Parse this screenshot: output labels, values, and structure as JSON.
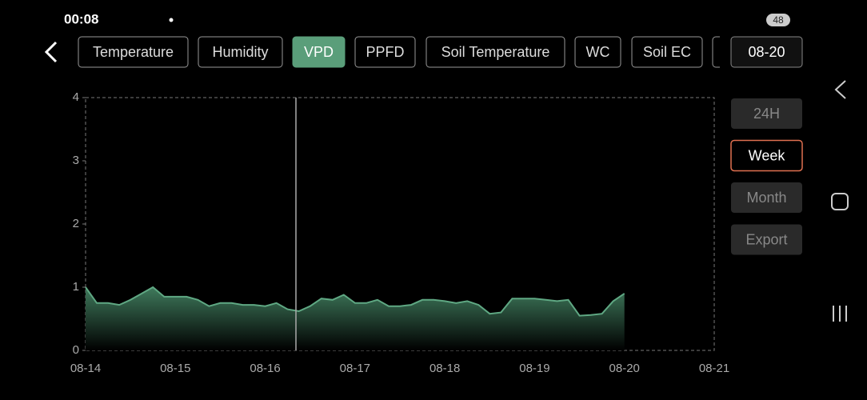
{
  "status_bar": {
    "time": "00:08",
    "battery": "48"
  },
  "tabs": [
    "Temperature",
    "Humidity",
    "VPD",
    "PPFD",
    "Soil Temperature",
    "WC",
    "Soil EC"
  ],
  "active_tab": 2,
  "date": "08-20",
  "range_buttons": [
    "24H",
    "Week",
    "Month",
    "Export"
  ],
  "selected_range": 1,
  "chart_data": {
    "type": "area",
    "color": "#5fa883",
    "xticks": [
      "08-14",
      "08-15",
      "08-16",
      "08-17",
      "08-18",
      "08-19",
      "08-20",
      "08-21"
    ],
    "samples_per_tick": 8,
    "values": [
      1.0,
      0.75,
      0.75,
      0.72,
      0.8,
      0.9,
      1.0,
      0.85,
      0.85,
      0.85,
      0.8,
      0.7,
      0.75,
      0.75,
      0.72,
      0.72,
      0.7,
      0.75,
      0.65,
      0.62,
      0.7,
      0.82,
      0.8,
      0.88,
      0.75,
      0.75,
      0.8,
      0.7,
      0.7,
      0.72,
      0.8,
      0.8,
      0.78,
      0.75,
      0.78,
      0.72,
      0.58,
      0.6,
      0.82,
      0.82,
      0.82,
      0.8,
      0.78,
      0.8,
      0.55,
      0.56,
      0.58,
      0.78,
      0.9
    ],
    "ylim": [
      0,
      4
    ],
    "yticks": [
      0,
      1,
      2,
      3,
      4
    ]
  }
}
